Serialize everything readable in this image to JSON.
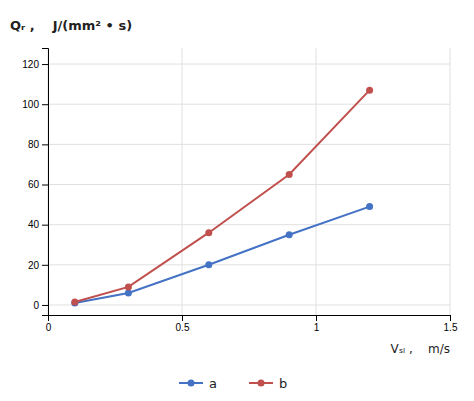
{
  "chart_data": {
    "type": "line",
    "y_label": "Qᵣ ,    J/(mm² • s)",
    "x_label": "Vₛₗ ,    m/s",
    "x": [
      0.1,
      0.3,
      0.6,
      0.9,
      1.2
    ],
    "series": [
      {
        "name": "a",
        "color": "#4472C4",
        "values": [
          1.0,
          6.0,
          20.0,
          35.0,
          49.0
        ]
      },
      {
        "name": "b",
        "color": "#C0504D",
        "values": [
          1.5,
          9.0,
          36.0,
          65.0,
          107.0
        ]
      }
    ],
    "xlim": [
      0,
      1.5
    ],
    "xticks": [
      0,
      0.5,
      1,
      1.5
    ],
    "ylim": [
      -5,
      128
    ],
    "yticks": [
      0,
      20,
      40,
      60,
      80,
      100,
      120
    ],
    "grid": true,
    "legend": "bottom",
    "marker": "circle"
  }
}
